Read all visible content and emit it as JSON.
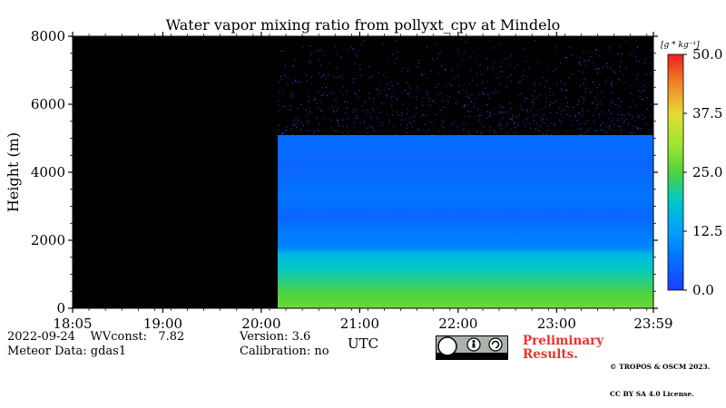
{
  "chart_data": {
    "type": "heatmap",
    "title": "Water vapor mixing ratio from pollyxt_cpv at Mindelo",
    "ylabel": "Height (m)",
    "xlabel": "UTC",
    "x_ticks": [
      "18:05",
      "19:00",
      "20:00",
      "21:00",
      "22:00",
      "23:00",
      "23:59"
    ],
    "y_ticks": [
      "0",
      "2000",
      "4000",
      "6000",
      "8000"
    ],
    "ylim": [
      0,
      8000
    ],
    "xlim": [
      "18:05",
      "23:59"
    ],
    "no_data_until": "20:10",
    "colorbar": {
      "unit": "[g * kg⁻¹]",
      "min": 0,
      "max": 50,
      "tick_labels": [
        "0.0",
        "12.5",
        "25.0",
        "37.5",
        "50.0"
      ],
      "colors": [
        "#1e3cff",
        "#00a0ff",
        "#00c8c8",
        "#50d23c",
        "#a0e632",
        "#e6dc32",
        "#f08228",
        "#f01e1e"
      ]
    },
    "profile": [
      {
        "height": 0,
        "value": 27
      },
      {
        "height": 400,
        "value": 25
      },
      {
        "height": 800,
        "value": 22
      },
      {
        "height": 1200,
        "value": 19
      },
      {
        "height": 1600,
        "value": 16
      },
      {
        "height": 1800,
        "value": 9
      },
      {
        "height": 2400,
        "value": 7
      },
      {
        "height": 2700,
        "value": 5
      },
      {
        "height": 3200,
        "value": 7
      },
      {
        "height": 3800,
        "value": 6
      },
      {
        "height": 4200,
        "value": 5
      },
      {
        "height": 4800,
        "value": 6
      },
      {
        "height": 5100,
        "value": 3
      },
      {
        "height": 8000,
        "value": 1
      }
    ]
  },
  "info": {
    "date_line": "2022-09-24    WVconst:   7.82",
    "meteor_line": "Meteor Data: gdas1",
    "version_line": "Version: 3.6",
    "calibration_line": "Calibration: no",
    "prelim_1": "Preliminary",
    "prelim_2": "Results.",
    "copyright_1": "© TROPOS & OSCM 2023.",
    "copyright_2": "CC BY SA 4.0 License."
  }
}
